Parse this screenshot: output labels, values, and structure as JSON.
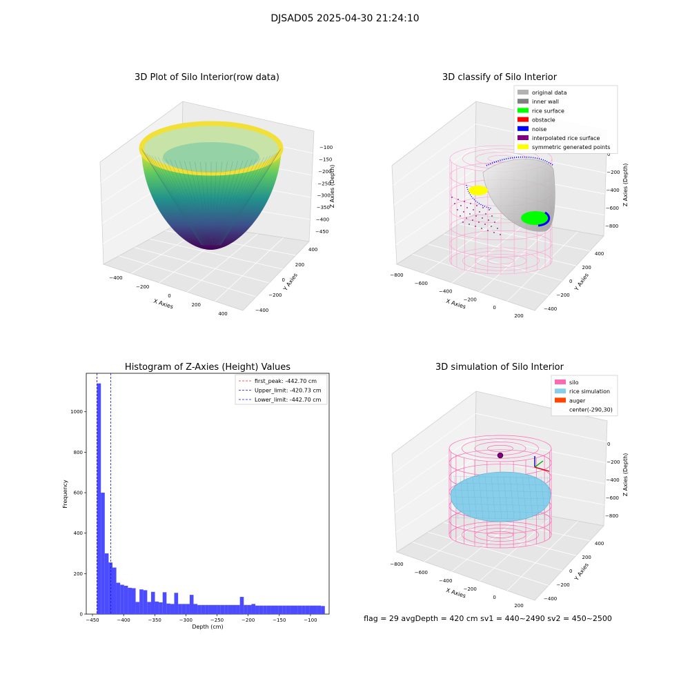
{
  "figure_title": "DJSAD05 2025-04-30 21:24:10",
  "status_line": "flag = 29  avgDepth = 420 cm  sv1 = 440~2490 sv2 = 450~2500",
  "colors": {
    "histogram_bar": "#4b4bff",
    "first_peak": "#e02020",
    "limit_lines": "#1010e0",
    "silo": "#ff69b4",
    "rice_simulation": "#87ceeb",
    "auger": "#ff4500",
    "original_data": "#b3b3b3",
    "inner_wall": "#808080",
    "rice_surface": "#00ff00",
    "obstacle": "#ff0000",
    "noise": "#0000ff",
    "interpolated_rice_surface": "#800080",
    "symmetric_generated_points": "#ffff00"
  },
  "chart_data": [
    {
      "type": "scatter",
      "projection": "3d",
      "title": "3D Plot of Silo Interior(row data)",
      "xlabel": "X Axies",
      "ylabel": "Y Axies",
      "zlabel": "Z Axies (Depth)",
      "x_ticks": [
        "−400",
        "−200",
        "0",
        "200",
        "400"
      ],
      "y_ticks": [
        "−400",
        "−200",
        "0",
        "200",
        "400"
      ],
      "z_ticks": [
        "−100",
        "−150",
        "−200",
        "−250",
        "−300",
        "−350",
        "−400",
        "−450"
      ],
      "colormap": "viridis",
      "surface": {
        "shape": "paraboloid",
        "radius": 450,
        "z_bottom": -450,
        "z_top": -90
      }
    },
    {
      "type": "scatter",
      "projection": "3d",
      "title": "3D classify of Silo Interior",
      "xlabel": "X Axies",
      "ylabel": "Y Axies",
      "zlabel": "Z Axies (Depth)",
      "x_ticks": [
        "−800",
        "−600",
        "−400",
        "−200",
        "0",
        "200"
      ],
      "y_ticks": [
        "−400",
        "−200",
        "0",
        "200",
        "400"
      ],
      "z_ticks": [
        "0",
        "−200",
        "−400",
        "−600",
        "−800"
      ],
      "legend": [
        "original data",
        "inner wall",
        "rice surface",
        "obstacle",
        "noise",
        "interpolated rice surface",
        "symmetric generated points"
      ],
      "legend_position": "top-right"
    },
    {
      "type": "bar",
      "title": "Histogram of Z-Axies (Height) Values",
      "xlabel": "Depth (cm)",
      "ylabel": "Frequency",
      "x_ticks": [
        "−450",
        "−400",
        "−350",
        "−300",
        "−250",
        "−200",
        "−150",
        "−100"
      ],
      "x_tick_values": [
        -450,
        -400,
        -350,
        -300,
        -250,
        -200,
        -150,
        -100
      ],
      "y_ticks": [
        "0",
        "200",
        "400",
        "600",
        "800",
        "1000"
      ],
      "y_tick_values": [
        0,
        200,
        400,
        600,
        800,
        1000
      ],
      "xlim": [
        -460,
        -70
      ],
      "ylim": [
        0,
        1190
      ],
      "bin_width": 6.2,
      "bin_starts": [
        -442.7,
        -436.5,
        -430.3,
        -424.1,
        -417.9,
        -411.7,
        -405.5,
        -399.3,
        -393.1,
        -386.9,
        -380.7,
        -374.5,
        -368.3,
        -362.1,
        -355.9,
        -349.7,
        -343.5,
        -337.3,
        -331.1,
        -324.9,
        -318.7,
        -312.5,
        -306.3,
        -300.1,
        -293.9,
        -287.7,
        -281.5,
        -275.3,
        -269.1,
        -262.9,
        -256.7,
        -250.5,
        -244.3,
        -238.1,
        -231.9,
        -225.7,
        -219.5,
        -213.3,
        -207.1,
        -200.9,
        -194.7,
        -188.5,
        -182.3,
        -176.1,
        -169.9,
        -163.7,
        -157.5,
        -151.3,
        -145.1,
        -138.9,
        -132.7,
        -126.5,
        -120.3,
        -114.1,
        -107.9,
        -101.7,
        -95.5,
        -89.3,
        -83.1
      ],
      "values": [
        1140,
        600,
        300,
        255,
        230,
        155,
        145,
        140,
        130,
        128,
        60,
        122,
        118,
        60,
        110,
        62,
        58,
        108,
        52,
        50,
        105,
        50,
        50,
        50,
        95,
        50,
        45,
        45,
        45,
        45,
        45,
        45,
        45,
        45,
        45,
        45,
        45,
        85,
        45,
        45,
        50,
        42,
        42,
        42,
        42,
        42,
        42,
        42,
        42,
        42,
        42,
        42,
        42,
        42,
        42,
        42,
        42,
        42,
        40
      ],
      "vlines": [
        {
          "label": "first_peak: -442.70 cm",
          "x": -442.7,
          "color": "#e02020"
        },
        {
          "label": "Upper_limit: -420.73 cm",
          "x": -420.73,
          "color": "#1010e0"
        },
        {
          "label": "Lower_limit: -442.70 cm",
          "x": -442.7,
          "color": "#1010e0"
        }
      ],
      "legend_position": "top-right"
    },
    {
      "type": "scatter",
      "projection": "3d",
      "title": "3D simulation of Silo Interior",
      "xlabel": "X Axies",
      "ylabel": "Y Axies",
      "zlabel": "Z Axies (Depth)",
      "x_ticks": [
        "−800",
        "−600",
        "−400",
        "−200",
        "0",
        "200"
      ],
      "y_ticks": [
        "−400",
        "−200",
        "0",
        "200",
        "400"
      ],
      "z_ticks": [
        "0",
        "−200",
        "−400",
        "−600",
        "−800"
      ],
      "legend": [
        "silo",
        "rice simulation",
        "auger",
        "center(-290,30)"
      ],
      "legend_position": "top-right"
    }
  ]
}
